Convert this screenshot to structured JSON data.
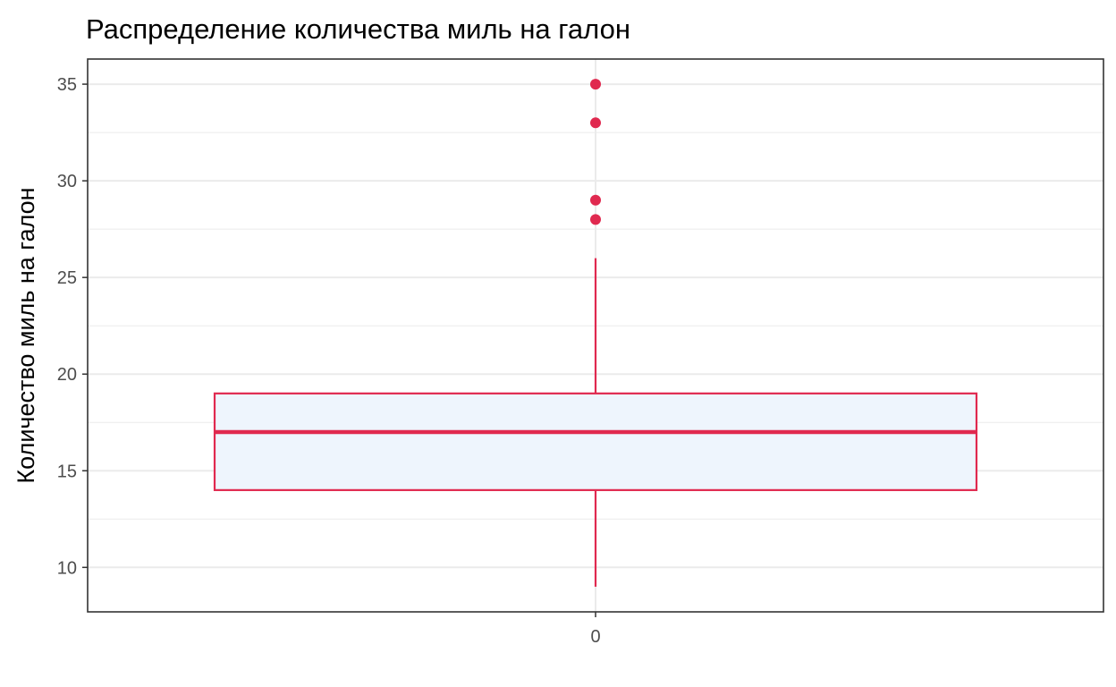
{
  "chart_data": {
    "type": "boxplot",
    "title": "Распределение количества миль на галон",
    "xlabel": "",
    "ylabel": "Количество миль на галон",
    "categories": [
      "0"
    ],
    "ylim": [
      7.7,
      36.3
    ],
    "y_ticks": [
      10,
      15,
      20,
      25,
      30,
      35
    ],
    "grid": true,
    "box": {
      "category": "0",
      "whisker_low": 9,
      "q1": 14,
      "median": 17,
      "q3": 19,
      "whisker_high": 26,
      "outliers": [
        28,
        29,
        33,
        35
      ]
    },
    "colors": {
      "box_edge": "#e0294f",
      "box_fill": "#eef5fd",
      "outlier": "#e0294f",
      "grid": "#ebebeb",
      "panel_border": "#333333"
    }
  }
}
